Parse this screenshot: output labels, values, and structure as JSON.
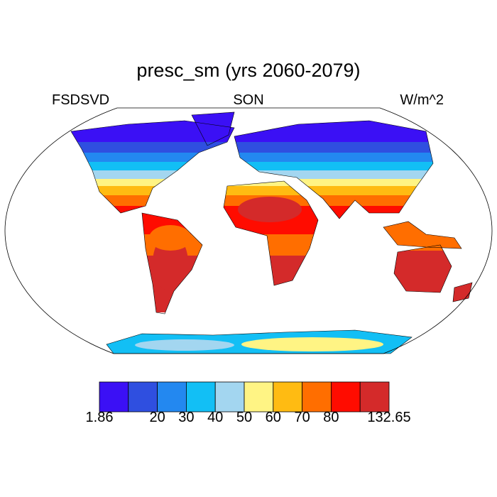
{
  "title": "presc_sm (yrs 2060-2079)",
  "left_string": "FSDSVD",
  "center_string": "SON",
  "right_string": "W/m^2",
  "colorbar": {
    "colors": [
      "#3b10f5",
      "#2f4fe0",
      "#2388f0",
      "#12bff5",
      "#a3d6f0",
      "#fff484",
      "#ffbb12",
      "#ff6e00",
      "#ff0c00",
      "#d42a2a"
    ],
    "ticks": [
      1.86,
      null,
      20,
      30,
      40,
      50,
      60,
      70,
      80,
      null,
      132.65
    ]
  }
}
